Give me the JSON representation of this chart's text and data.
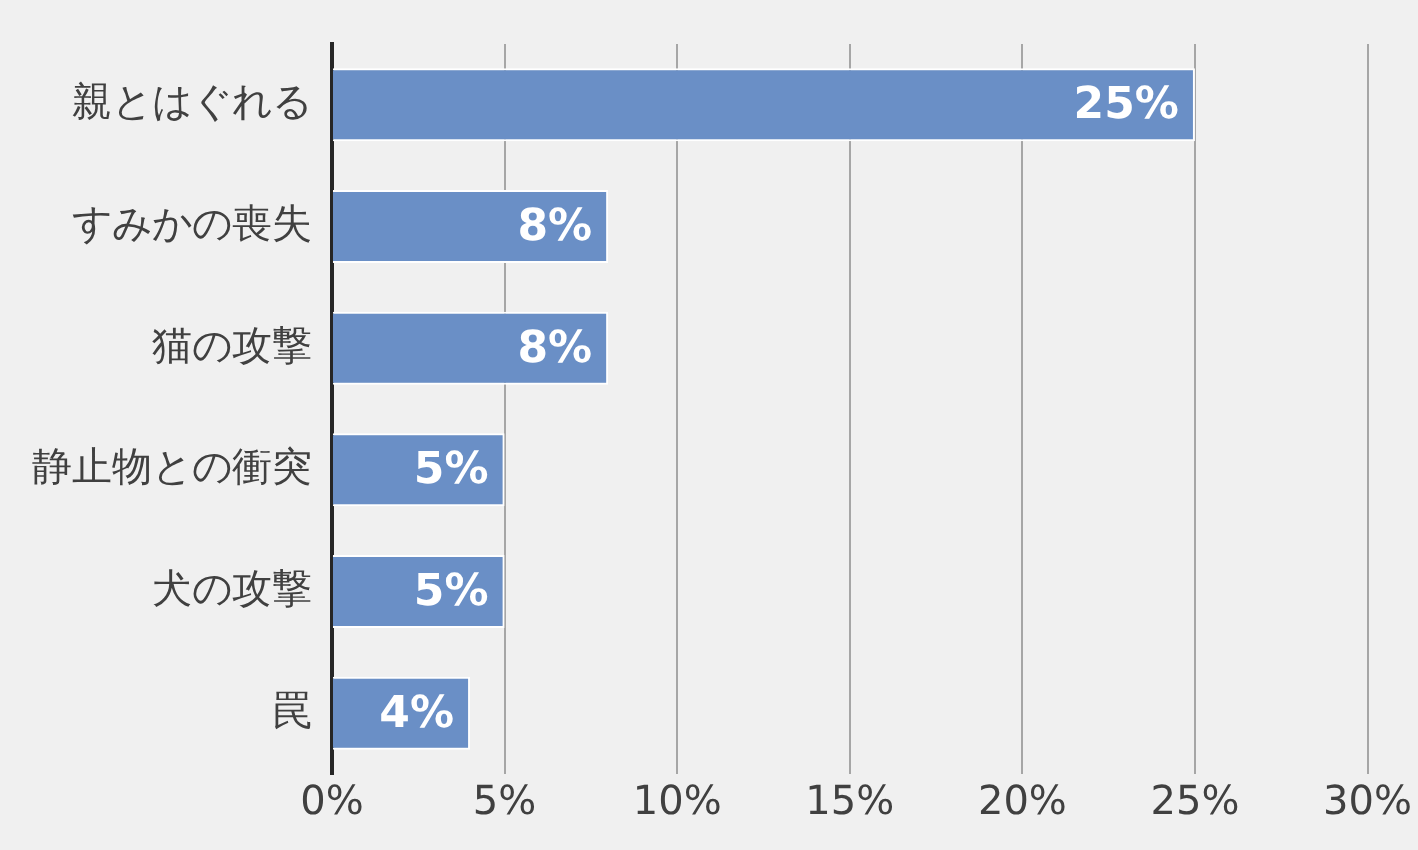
{
  "chart_data": {
    "type": "bar",
    "orientation": "horizontal",
    "categories": [
      "親とはぐれる",
      "すみかの喪失",
      "猫の攻撃",
      "静止物との衝突",
      "犬の攻撃",
      "罠"
    ],
    "values": [
      25,
      8,
      8,
      5,
      5,
      4
    ],
    "value_labels": [
      "25%",
      "8%",
      "8%",
      "5%",
      "5%",
      "4%"
    ],
    "color": "#6a8fc6",
    "xlim": [
      0,
      30
    ],
    "xticks": [
      {
        "value": 0,
        "label": "0%"
      },
      {
        "value": 5,
        "label": "5%"
      },
      {
        "value": 10,
        "label": "10%"
      },
      {
        "value": 15,
        "label": "15%"
      },
      {
        "value": 20,
        "label": "20%"
      },
      {
        "value": 25,
        "label": "25%"
      },
      {
        "value": 30,
        "label": "30%"
      }
    ],
    "grid": "x"
  }
}
